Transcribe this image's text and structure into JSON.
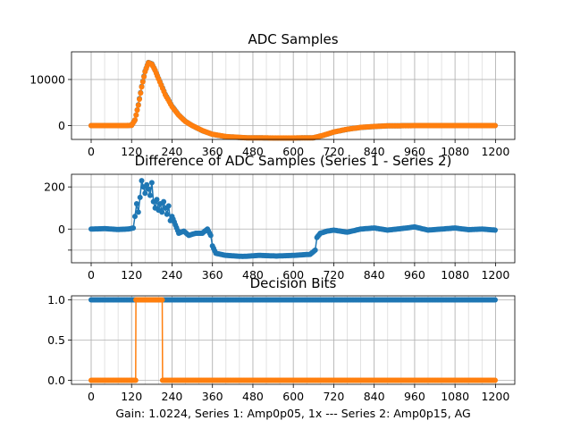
{
  "footer_text": "Gain: 1.0224, Series 1: Amp0p05, 1x --- Series 2: Amp0p15, AG",
  "colors": {
    "series1": "#1f77b4",
    "series2": "#ff7f0e",
    "grid": "#b0b0b0"
  },
  "chart_data": [
    {
      "type": "scatter",
      "title": "ADC Samples",
      "xlim": [
        0,
        1199
      ],
      "ylim": [
        -3000,
        16000
      ],
      "xticks": [
        0,
        120,
        240,
        360,
        480,
        600,
        720,
        840,
        960,
        1080,
        1200
      ],
      "xtick_labels": [
        "0",
        "120",
        "240",
        "360",
        "480",
        "600",
        "720",
        "840",
        "960",
        "1080",
        "1200"
      ],
      "yticks": [
        0,
        10000
      ],
      "ytick_labels": [
        "0",
        "10000"
      ],
      "minor_grid_x_step": 40,
      "grid": true,
      "series": [
        {
          "key": "s1",
          "points": [
            [
              0,
              0
            ],
            [
              100,
              0
            ],
            [
              120,
              50
            ],
            [
              130,
              1200
            ],
            [
              140,
              4500
            ],
            [
              150,
              8500
            ],
            [
              160,
              11800
            ],
            [
              170,
              13700
            ],
            [
              180,
              13400
            ],
            [
              190,
              12000
            ],
            [
              200,
              10200
            ],
            [
              220,
              6800
            ],
            [
              240,
              4200
            ],
            [
              260,
              2300
            ],
            [
              280,
              900
            ],
            [
              300,
              0
            ],
            [
              330,
              -1100
            ],
            [
              360,
              -1900
            ],
            [
              400,
              -2400
            ],
            [
              460,
              -2650
            ],
            [
              540,
              -2700
            ],
            [
              600,
              -2700
            ],
            [
              660,
              -2650
            ],
            [
              690,
              -2100
            ],
            [
              720,
              -1400
            ],
            [
              760,
              -800
            ],
            [
              800,
              -400
            ],
            [
              840,
              -200
            ],
            [
              880,
              -50
            ],
            [
              960,
              0
            ],
            [
              1080,
              0
            ],
            [
              1199,
              0
            ]
          ]
        },
        {
          "key": "s2",
          "points": [
            [
              0,
              0
            ],
            [
              100,
              0
            ],
            [
              120,
              50
            ],
            [
              130,
              1200
            ],
            [
              140,
              4400
            ],
            [
              150,
              8400
            ],
            [
              160,
              11700
            ],
            [
              170,
              13650
            ],
            [
              180,
              13350
            ],
            [
              190,
              11950
            ],
            [
              200,
              10150
            ],
            [
              220,
              6700
            ],
            [
              240,
              4100
            ],
            [
              260,
              2250
            ],
            [
              280,
              880
            ],
            [
              300,
              0
            ],
            [
              330,
              -1080
            ],
            [
              360,
              -1880
            ],
            [
              400,
              -2380
            ],
            [
              460,
              -2640
            ],
            [
              540,
              -2690
            ],
            [
              600,
              -2690
            ],
            [
              660,
              -2640
            ],
            [
              690,
              -2080
            ],
            [
              720,
              -1390
            ],
            [
              760,
              -790
            ],
            [
              800,
              -390
            ],
            [
              840,
              -190
            ],
            [
              880,
              -45
            ],
            [
              960,
              0
            ],
            [
              1080,
              0
            ],
            [
              1199,
              0
            ]
          ]
        }
      ]
    },
    {
      "type": "scatter",
      "title": "Difference of ADC Samples (Series 1 - Series 2)",
      "xlim": [
        0,
        1199
      ],
      "ylim": [
        -160,
        260
      ],
      "xticks": [
        0,
        120,
        240,
        360,
        480,
        600,
        720,
        840,
        960,
        1080,
        1200
      ],
      "xtick_labels": [
        "0",
        "120",
        "240",
        "360",
        "480",
        "600",
        "720",
        "840",
        "960",
        "1080",
        "1200"
      ],
      "yticks": [
        -100,
        0,
        200
      ],
      "ytick_labels": [
        "",
        "0",
        "200"
      ],
      "minor_grid_x_step": 40,
      "grid": true,
      "series": [
        {
          "key": "s1",
          "points": [
            [
              0,
              0
            ],
            [
              40,
              2
            ],
            [
              80,
              -2
            ],
            [
              110,
              0
            ],
            [
              125,
              5
            ],
            [
              130,
              60
            ],
            [
              135,
              120
            ],
            [
              140,
              80
            ],
            [
              145,
              150
            ],
            [
              150,
              230
            ],
            [
              155,
              200
            ],
            [
              160,
              170
            ],
            [
              165,
              210
            ],
            [
              170,
              190
            ],
            [
              175,
              160
            ],
            [
              180,
              220
            ],
            [
              185,
              130
            ],
            [
              190,
              100
            ],
            [
              195,
              140
            ],
            [
              200,
              90
            ],
            [
              205,
              120
            ],
            [
              210,
              80
            ],
            [
              215,
              130
            ],
            [
              220,
              100
            ],
            [
              225,
              70
            ],
            [
              230,
              110
            ],
            [
              235,
              40
            ],
            [
              240,
              60
            ],
            [
              250,
              20
            ],
            [
              260,
              -20
            ],
            [
              275,
              -10
            ],
            [
              290,
              -30
            ],
            [
              310,
              -20
            ],
            [
              330,
              -20
            ],
            [
              345,
              0
            ],
            [
              355,
              -30
            ],
            [
              360,
              -80
            ],
            [
              370,
              -115
            ],
            [
              400,
              -125
            ],
            [
              450,
              -130
            ],
            [
              500,
              -125
            ],
            [
              550,
              -128
            ],
            [
              600,
              -125
            ],
            [
              650,
              -120
            ],
            [
              665,
              -100
            ],
            [
              670,
              -40
            ],
            [
              680,
              -20
            ],
            [
              700,
              -10
            ],
            [
              720,
              -5
            ],
            [
              760,
              -15
            ],
            [
              800,
              0
            ],
            [
              840,
              5
            ],
            [
              880,
              -5
            ],
            [
              920,
              2
            ],
            [
              960,
              10
            ],
            [
              1000,
              -5
            ],
            [
              1040,
              0
            ],
            [
              1080,
              5
            ],
            [
              1120,
              -3
            ],
            [
              1160,
              0
            ],
            [
              1199,
              -5
            ]
          ]
        }
      ]
    },
    {
      "type": "scatter",
      "title": "Decision Bits",
      "xlim": [
        0,
        1199
      ],
      "ylim": [
        -0.05,
        1.05
      ],
      "xticks": [
        0,
        120,
        240,
        360,
        480,
        600,
        720,
        840,
        960,
        1080,
        1200
      ],
      "xtick_labels": [
        "0",
        "120",
        "240",
        "360",
        "480",
        "600",
        "720",
        "840",
        "960",
        "1080",
        "1200"
      ],
      "yticks": [
        0.0,
        0.5,
        1.0
      ],
      "ytick_labels": [
        "0.0",
        "0.5",
        "1.0"
      ],
      "minor_grid_x_step": 40,
      "grid": true,
      "series": [
        {
          "key": "s1",
          "points": [
            [
              0,
              1
            ],
            [
              1199,
              1
            ]
          ]
        },
        {
          "key": "s2",
          "points": [
            [
              0,
              0
            ],
            [
              132,
              0
            ],
            [
              133,
              1
            ],
            [
              211,
              1
            ],
            [
              212,
              0
            ],
            [
              1199,
              0
            ]
          ]
        }
      ]
    }
  ]
}
